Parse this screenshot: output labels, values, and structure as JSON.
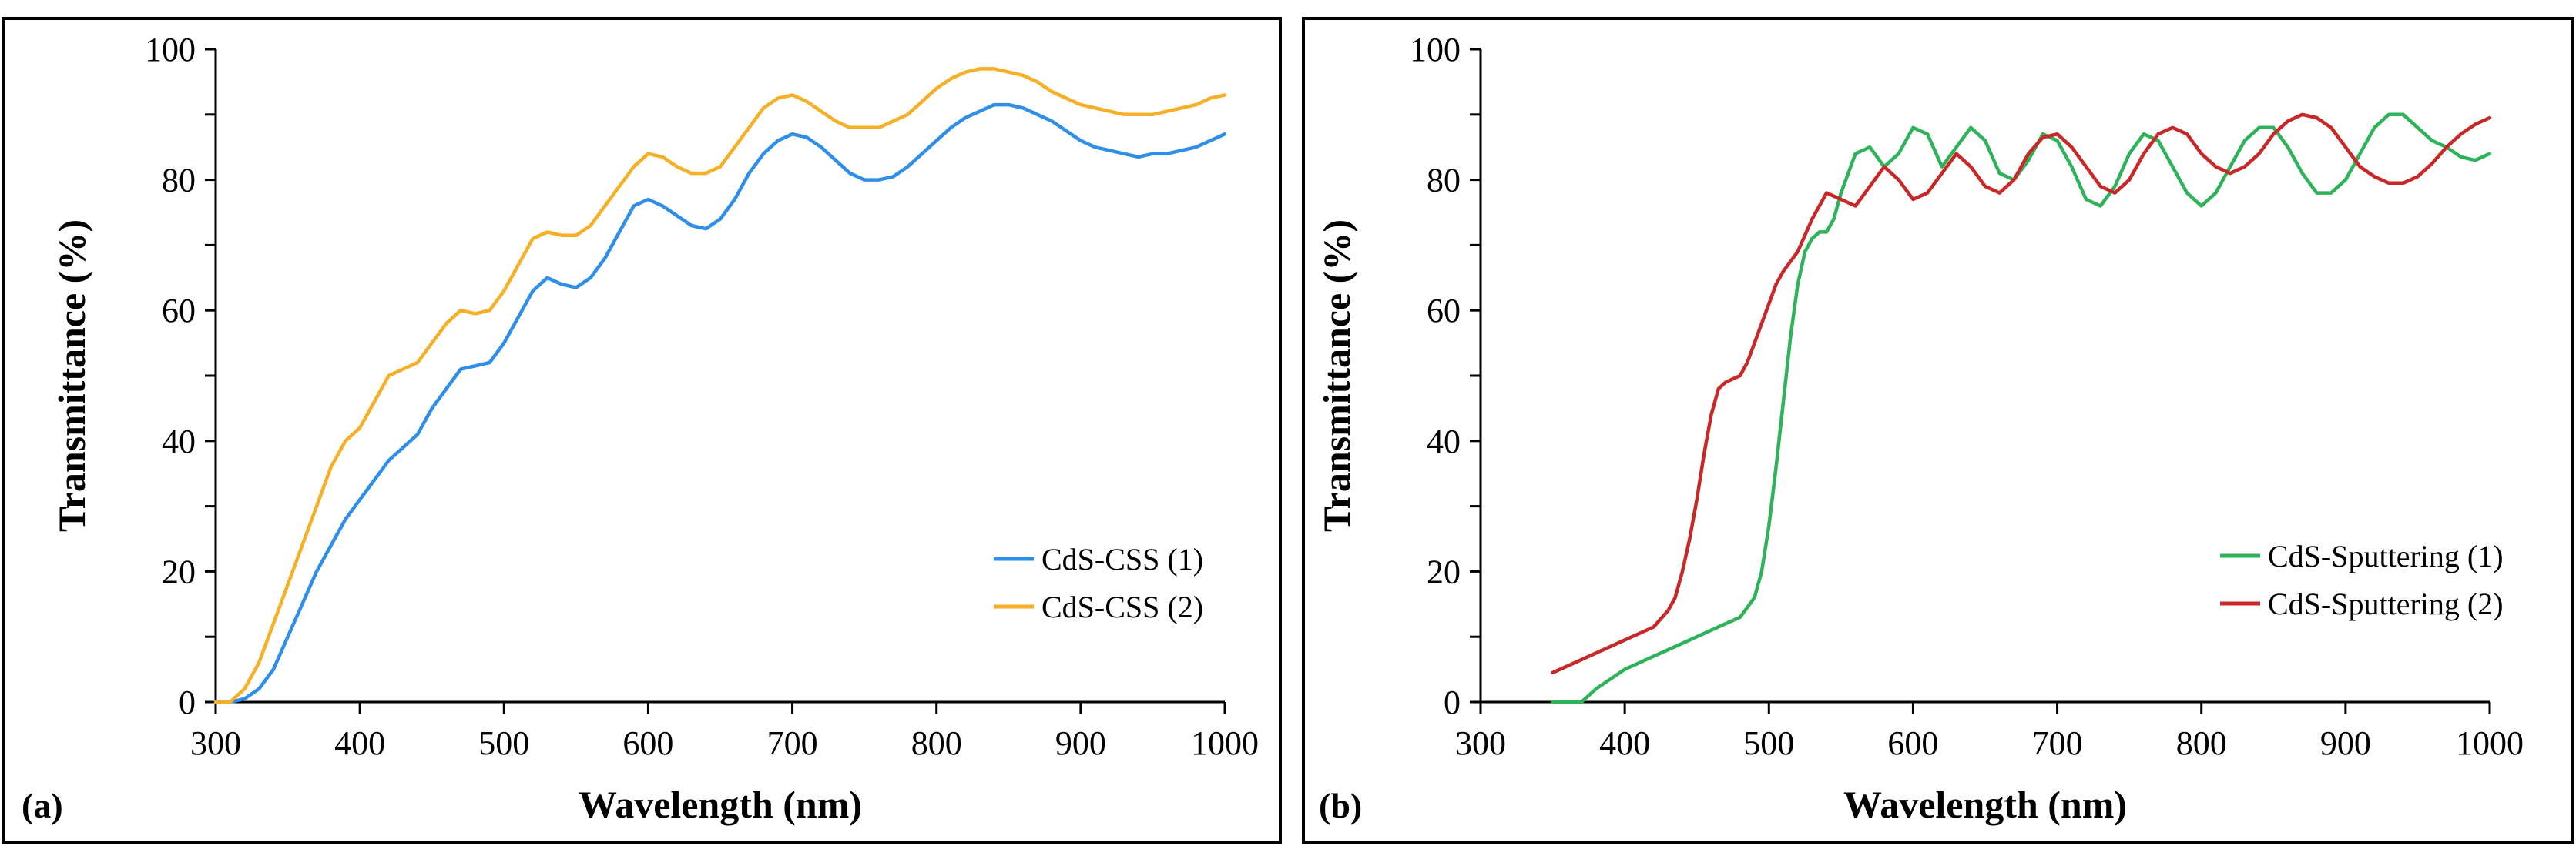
{
  "chart_data": [
    {
      "type": "line",
      "panel_label": "(a)",
      "xlabel": "Wavelength (nm)",
      "ylabel": "Transmittance (%)",
      "xlim": [
        300,
        1000
      ],
      "ylim": [
        0,
        100
      ],
      "xticks": [
        300,
        400,
        500,
        600,
        700,
        800,
        900,
        1000
      ],
      "yticks": [
        0,
        20,
        40,
        60,
        80,
        100
      ],
      "legend_position": "right-middle",
      "series": [
        {
          "name": "CdS-CSS (1)",
          "color": "#2f8fe8",
          "x": [
            300,
            310,
            320,
            330,
            340,
            350,
            360,
            370,
            380,
            390,
            400,
            410,
            420,
            430,
            440,
            450,
            460,
            470,
            480,
            490,
            500,
            510,
            520,
            530,
            540,
            550,
            560,
            570,
            580,
            590,
            600,
            610,
            620,
            630,
            640,
            650,
            660,
            670,
            680,
            690,
            700,
            710,
            720,
            730,
            740,
            750,
            760,
            770,
            780,
            790,
            800,
            810,
            820,
            830,
            840,
            850,
            860,
            870,
            880,
            890,
            900,
            910,
            920,
            930,
            940,
            950,
            960,
            970,
            980,
            990,
            1000
          ],
          "y": [
            0,
            0,
            0.5,
            2,
            5,
            10,
            15,
            20,
            24,
            28,
            31,
            34,
            37,
            39,
            41,
            45,
            48,
            51,
            51.5,
            52,
            55,
            59,
            63,
            65,
            64,
            63.5,
            65,
            68,
            72,
            76,
            77,
            76,
            74.5,
            73,
            72.5,
            74,
            77,
            81,
            84,
            86,
            87,
            86.5,
            85,
            83,
            81,
            80,
            80,
            80.5,
            82,
            84,
            86,
            88,
            89.5,
            90.5,
            91.5,
            91.5,
            91,
            90,
            89,
            87.5,
            86,
            85,
            84.5,
            84,
            83.5,
            84,
            84,
            84.5,
            85,
            86,
            87
          ]
        },
        {
          "name": "CdS-CSS (2)",
          "color": "#f6b027",
          "x": [
            300,
            310,
            320,
            330,
            340,
            350,
            360,
            370,
            380,
            390,
            400,
            410,
            420,
            430,
            440,
            450,
            460,
            470,
            480,
            490,
            500,
            510,
            520,
            530,
            540,
            550,
            560,
            570,
            580,
            590,
            600,
            610,
            620,
            630,
            640,
            650,
            660,
            670,
            680,
            690,
            700,
            710,
            720,
            730,
            740,
            750,
            760,
            770,
            780,
            790,
            800,
            810,
            820,
            830,
            840,
            850,
            860,
            870,
            880,
            890,
            900,
            910,
            920,
            930,
            940,
            950,
            960,
            970,
            980,
            990,
            1000
          ],
          "y": [
            0,
            0,
            2,
            6,
            12,
            18,
            24,
            30,
            36,
            40,
            42,
            46,
            50,
            51,
            52,
            55,
            58,
            60,
            59.5,
            60,
            63,
            67,
            71,
            72,
            71.5,
            71.5,
            73,
            76,
            79,
            82,
            84,
            83.5,
            82,
            81,
            81,
            82,
            85,
            88,
            91,
            92.5,
            93,
            92,
            90.5,
            89,
            88,
            88,
            88,
            89,
            90,
            92,
            94,
            95.5,
            96.5,
            97,
            97,
            96.5,
            96,
            95,
            93.5,
            92.5,
            91.5,
            91,
            90.5,
            90,
            90,
            90,
            90.5,
            91,
            91.5,
            92.5,
            93
          ]
        }
      ]
    },
    {
      "type": "line",
      "panel_label": "(b)",
      "xlabel": "Wavelength (nm)",
      "ylabel": "Transmittance (%)",
      "xlim": [
        300,
        1000
      ],
      "ylim": [
        0,
        100
      ],
      "xticks": [
        300,
        400,
        500,
        600,
        700,
        800,
        900,
        1000
      ],
      "yticks": [
        0,
        20,
        40,
        60,
        80,
        100
      ],
      "legend_position": "right-middle",
      "series": [
        {
          "name": "CdS-Sputtering (1)",
          "color": "#2fb35a",
          "x": [
            350,
            360,
            370,
            380,
            390,
            400,
            410,
            420,
            430,
            440,
            450,
            460,
            470,
            480,
            490,
            495,
            500,
            505,
            510,
            515,
            520,
            525,
            530,
            535,
            540,
            545,
            550,
            560,
            570,
            580,
            590,
            600,
            610,
            620,
            630,
            640,
            650,
            660,
            670,
            680,
            690,
            700,
            710,
            720,
            730,
            740,
            750,
            760,
            770,
            780,
            790,
            800,
            810,
            820,
            830,
            840,
            850,
            860,
            870,
            880,
            890,
            900,
            910,
            920,
            930,
            940,
            950,
            960,
            970,
            980,
            990,
            1000
          ],
          "y": [
            0,
            0,
            0,
            2,
            3.5,
            5,
            6,
            7,
            8,
            9,
            10,
            11,
            12,
            13,
            16,
            20,
            27,
            36,
            46,
            56,
            64,
            69,
            71,
            72,
            72,
            74,
            78,
            84,
            85,
            82,
            84,
            88,
            87,
            82,
            85,
            88,
            86,
            81,
            80,
            83,
            87,
            86,
            82,
            77,
            76,
            79,
            84,
            87,
            86,
            82,
            78,
            76,
            78,
            82,
            86,
            88,
            88,
            85,
            81,
            78,
            78,
            80,
            84,
            88,
            90,
            90,
            88,
            86,
            85,
            83.5,
            83,
            84
          ]
        },
        {
          "name": "CdS-Sputtering (2)",
          "color": "#c82828",
          "x": [
            350,
            360,
            370,
            380,
            390,
            400,
            410,
            420,
            430,
            435,
            440,
            445,
            450,
            455,
            460,
            465,
            470,
            475,
            480,
            485,
            490,
            495,
            500,
            505,
            510,
            520,
            530,
            540,
            550,
            560,
            570,
            580,
            590,
            600,
            610,
            620,
            630,
            640,
            650,
            660,
            670,
            680,
            690,
            700,
            710,
            720,
            730,
            740,
            750,
            760,
            770,
            780,
            790,
            800,
            810,
            820,
            830,
            840,
            850,
            860,
            870,
            880,
            890,
            900,
            910,
            920,
            930,
            940,
            950,
            960,
            970,
            980,
            990,
            1000
          ],
          "y": [
            4.5,
            5.5,
            6.5,
            7.5,
            8.5,
            9.5,
            10.5,
            11.5,
            14,
            16,
            20,
            25,
            31,
            38,
            44,
            48,
            49,
            49.5,
            50,
            52,
            55,
            58,
            61,
            64,
            66,
            69,
            74,
            78,
            77,
            76,
            79,
            82,
            80,
            77,
            78,
            81,
            84,
            82,
            79,
            78,
            80,
            84,
            86.5,
            87,
            85,
            82,
            79,
            78,
            80,
            84,
            87,
            88,
            87,
            84,
            82,
            81,
            82,
            84,
            87,
            89,
            90,
            89.5,
            88,
            85,
            82,
            80.5,
            79.5,
            79.5,
            80.5,
            82.5,
            85,
            87,
            88.5,
            89.5
          ]
        }
      ]
    }
  ]
}
